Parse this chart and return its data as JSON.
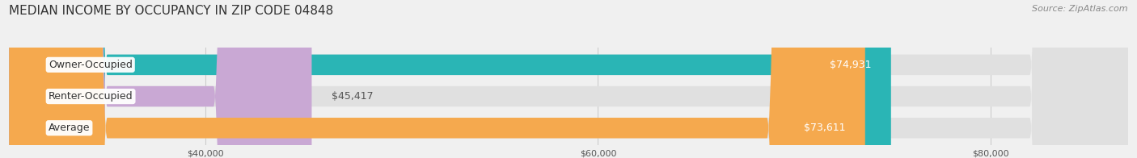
{
  "title": "MEDIAN INCOME BY OCCUPANCY IN ZIP CODE 04848",
  "source": "Source: ZipAtlas.com",
  "categories": [
    "Owner-Occupied",
    "Renter-Occupied",
    "Average"
  ],
  "values": [
    74931,
    45417,
    73611
  ],
  "bar_colors": [
    "#2ab5b5",
    "#c9a8d4",
    "#f5a94e"
  ],
  "value_labels": [
    "$74,931",
    "$45,417",
    "$73,611"
  ],
  "xmin": 30000,
  "xmax": 87000,
  "xticks": [
    40000,
    60000,
    80000
  ],
  "xticklabels": [
    "$40,000",
    "$60,000",
    "$80,000"
  ],
  "background_color": "#f0f0f0",
  "bar_background": "#e0e0e0",
  "title_fontsize": 11,
  "source_fontsize": 8,
  "label_fontsize": 9,
  "value_fontsize": 9
}
